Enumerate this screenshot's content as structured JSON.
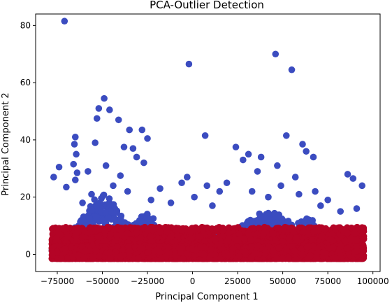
{
  "chart_data": {
    "type": "scatter",
    "title": "PCA-Outlier Detection",
    "xlabel": "Principal Component 1",
    "ylabel": "Principal Component 2",
    "xlim": [
      -87000,
      104000
    ],
    "ylim": [
      -6,
      84
    ],
    "x_ticks": [
      {
        "value": -75000,
        "label": "−75000"
      },
      {
        "value": -50000,
        "label": "−50000"
      },
      {
        "value": -25000,
        "label": "−25000"
      },
      {
        "value": 0,
        "label": "0"
      },
      {
        "value": 25000,
        "label": "25000"
      },
      {
        "value": 50000,
        "label": "50000"
      },
      {
        "value": 75000,
        "label": "75000"
      },
      {
        "value": 100000,
        "label": "100000"
      }
    ],
    "y_ticks": [
      {
        "value": 0,
        "label": "0"
      },
      {
        "value": 20,
        "label": "20"
      },
      {
        "value": 40,
        "label": "40"
      },
      {
        "value": 60,
        "label": "60"
      },
      {
        "value": 80,
        "label": "80"
      }
    ],
    "grid": false,
    "legend": "none",
    "colors": {
      "outlier": "#3b4cc0",
      "inlier": "#b40426"
    },
    "series": [
      {
        "class": "outlier",
        "x": [
          -71000,
          46000,
          -2000,
          55000,
          -49000,
          -52000,
          -46000,
          -41000,
          -53000,
          -54000,
          -35000,
          -28000,
          -33000,
          -38000,
          -31000,
          -25000,
          7000,
          24000,
          31000,
          28000,
          38000,
          52000,
          61000,
          67000,
          63000,
          86000,
          94000,
          89000,
          -65000,
          -65500,
          -64500,
          -66000,
          -64000,
          -65000,
          -58000,
          -48000,
          -40000,
          -27000,
          -18000,
          -6000,
          -3000,
          8000,
          15000,
          19000,
          36000,
          47000,
          57000,
          68000,
          75000,
          -77000,
          -74000,
          -70000,
          -61000,
          -56000,
          -44000,
          -36000,
          -23000,
          -12000,
          1000,
          11000,
          33000,
          42000,
          49000,
          59000,
          71000,
          82000,
          91000
        ],
        "y": [
          81.5,
          70,
          66.5,
          64.5,
          54.5,
          51,
          50.5,
          47,
          47.5,
          39,
          43.5,
          43.5,
          37,
          37.5,
          34,
          40.5,
          41.5,
          37.5,
          35,
          33,
          34,
          41.5,
          38.5,
          34,
          36,
          28,
          24,
          26.5,
          41,
          38.5,
          35,
          31.5,
          28.5,
          26,
          29,
          31,
          27.5,
          32,
          23,
          25,
          27,
          24,
          22,
          25,
          29,
          31,
          27,
          22,
          19,
          27,
          30.5,
          23.5,
          18,
          21,
          24,
          22,
          19,
          18,
          20,
          17,
          22,
          20,
          24,
          21,
          17,
          15,
          16
        ]
      }
    ]
  }
}
